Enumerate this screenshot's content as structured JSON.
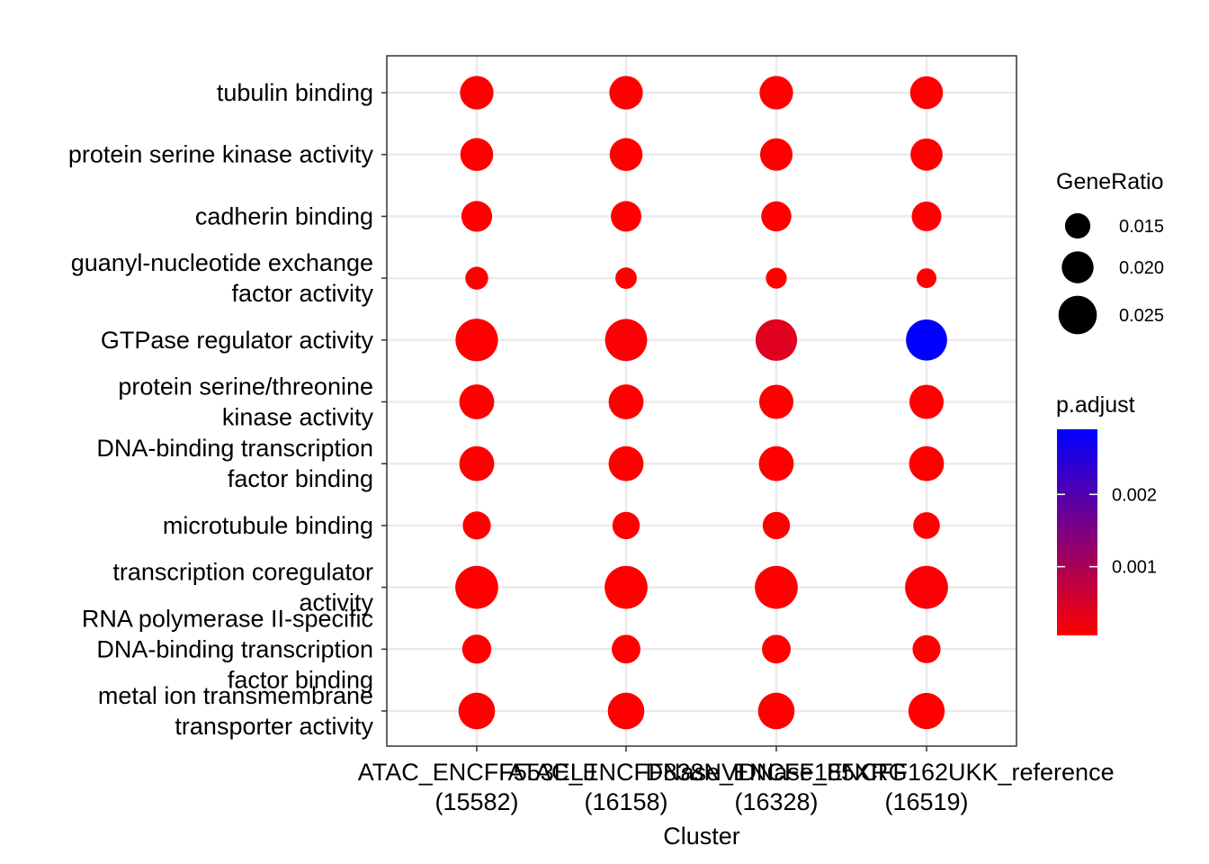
{
  "chart_data": {
    "type": "scatter",
    "subtype": "dot-plot",
    "xlabel": "Cluster",
    "ylabel": "",
    "grid": true,
    "x_categories": [
      [
        "ATAC_ENCFF553ELJ",
        "(15582)"
      ],
      [
        "ATAC_ENCFF838NVI",
        "(16158)"
      ],
      [
        "DNase_ENCFF185XRG",
        "(16328)"
      ],
      [
        "DNase_ENCFF162UKK_reference",
        "(16519)"
      ]
    ],
    "y_categories": [
      [
        "tubulin binding"
      ],
      [
        "protein serine kinase activity"
      ],
      [
        "cadherin binding"
      ],
      [
        "guanyl-nucleotide exchange",
        "factor activity"
      ],
      [
        "GTPase regulator activity"
      ],
      [
        "protein serine/threonine",
        "kinase activity"
      ],
      [
        "DNA-binding transcription",
        "factor binding"
      ],
      [
        "microtubule binding"
      ],
      [
        "transcription coregulator",
        "activity"
      ],
      [
        "RNA polymerase II-specific",
        "DNA-binding transcription",
        "factor binding"
      ],
      [
        "metal ion transmembrane",
        "transporter activity"
      ]
    ],
    "points": [
      {
        "row": 0,
        "values": [
          {
            "gene_ratio": 0.02,
            "p_adjust": 5e-05
          },
          {
            "gene_ratio": 0.02,
            "p_adjust": 5e-05
          },
          {
            "gene_ratio": 0.02,
            "p_adjust": 5e-05
          },
          {
            "gene_ratio": 0.0195,
            "p_adjust": 5e-05
          }
        ]
      },
      {
        "row": 1,
        "values": [
          {
            "gene_ratio": 0.0195,
            "p_adjust": 5e-05
          },
          {
            "gene_ratio": 0.0195,
            "p_adjust": 5e-05
          },
          {
            "gene_ratio": 0.0192,
            "p_adjust": 5e-05
          },
          {
            "gene_ratio": 0.019,
            "p_adjust": 5e-05
          }
        ]
      },
      {
        "row": 2,
        "values": [
          {
            "gene_ratio": 0.018,
            "p_adjust": 5e-05
          },
          {
            "gene_ratio": 0.0178,
            "p_adjust": 5e-05
          },
          {
            "gene_ratio": 0.0175,
            "p_adjust": 5e-05
          },
          {
            "gene_ratio": 0.0172,
            "p_adjust": 5e-05
          }
        ]
      },
      {
        "row": 3,
        "values": [
          {
            "gene_ratio": 0.0122,
            "p_adjust": 5e-05
          },
          {
            "gene_ratio": 0.0112,
            "p_adjust": 5e-05
          },
          {
            "gene_ratio": 0.0108,
            "p_adjust": 5e-05
          },
          {
            "gene_ratio": 0.01,
            "p_adjust": 5e-05
          }
        ]
      },
      {
        "row": 4,
        "values": [
          {
            "gene_ratio": 0.0265,
            "p_adjust": 5e-05
          },
          {
            "gene_ratio": 0.0262,
            "p_adjust": 0.0001
          },
          {
            "gene_ratio": 0.0258,
            "p_adjust": 0.0004
          },
          {
            "gene_ratio": 0.0255,
            "p_adjust": 0.0029
          }
        ]
      },
      {
        "row": 5,
        "values": [
          {
            "gene_ratio": 0.021,
            "p_adjust": 5e-05
          },
          {
            "gene_ratio": 0.021,
            "p_adjust": 5e-05
          },
          {
            "gene_ratio": 0.0205,
            "p_adjust": 5e-05
          },
          {
            "gene_ratio": 0.0205,
            "p_adjust": 5e-05
          }
        ]
      },
      {
        "row": 6,
        "values": [
          {
            "gene_ratio": 0.021,
            "p_adjust": 5e-05
          },
          {
            "gene_ratio": 0.021,
            "p_adjust": 5e-05
          },
          {
            "gene_ratio": 0.021,
            "p_adjust": 5e-05
          },
          {
            "gene_ratio": 0.021,
            "p_adjust": 5e-05
          }
        ]
      },
      {
        "row": 7,
        "values": [
          {
            "gene_ratio": 0.016,
            "p_adjust": 5e-05
          },
          {
            "gene_ratio": 0.0155,
            "p_adjust": 5e-05
          },
          {
            "gene_ratio": 0.0155,
            "p_adjust": 5e-05
          },
          {
            "gene_ratio": 0.015,
            "p_adjust": 5e-05
          }
        ]
      },
      {
        "row": 8,
        "values": [
          {
            "gene_ratio": 0.0268,
            "p_adjust": 5e-05
          },
          {
            "gene_ratio": 0.0268,
            "p_adjust": 5e-05
          },
          {
            "gene_ratio": 0.0268,
            "p_adjust": 5e-05
          },
          {
            "gene_ratio": 0.0268,
            "p_adjust": 0.0001
          }
        ]
      },
      {
        "row": 9,
        "values": [
          {
            "gene_ratio": 0.0168,
            "p_adjust": 5e-05
          },
          {
            "gene_ratio": 0.0165,
            "p_adjust": 5e-05
          },
          {
            "gene_ratio": 0.0165,
            "p_adjust": 5e-05
          },
          {
            "gene_ratio": 0.016,
            "p_adjust": 5e-05
          }
        ]
      },
      {
        "row": 10,
        "values": [
          {
            "gene_ratio": 0.0222,
            "p_adjust": 5e-05
          },
          {
            "gene_ratio": 0.0222,
            "p_adjust": 5e-05
          },
          {
            "gene_ratio": 0.0222,
            "p_adjust": 5e-05
          },
          {
            "gene_ratio": 0.022,
            "p_adjust": 5e-05
          }
        ]
      }
    ],
    "legend": {
      "size": {
        "title": "GeneRatio",
        "breaks": [
          0.015,
          0.02,
          0.025
        ],
        "labels": [
          "0.015",
          "0.020",
          "0.025"
        ]
      },
      "color": {
        "title": "p.adjust",
        "breaks": [
          0.002,
          0.001
        ],
        "labels": [
          "0.002",
          "0.001"
        ],
        "range": [
          5e-05,
          0.0029
        ],
        "low_color": "#ff0000",
        "high_color": "#0000ff"
      }
    }
  }
}
